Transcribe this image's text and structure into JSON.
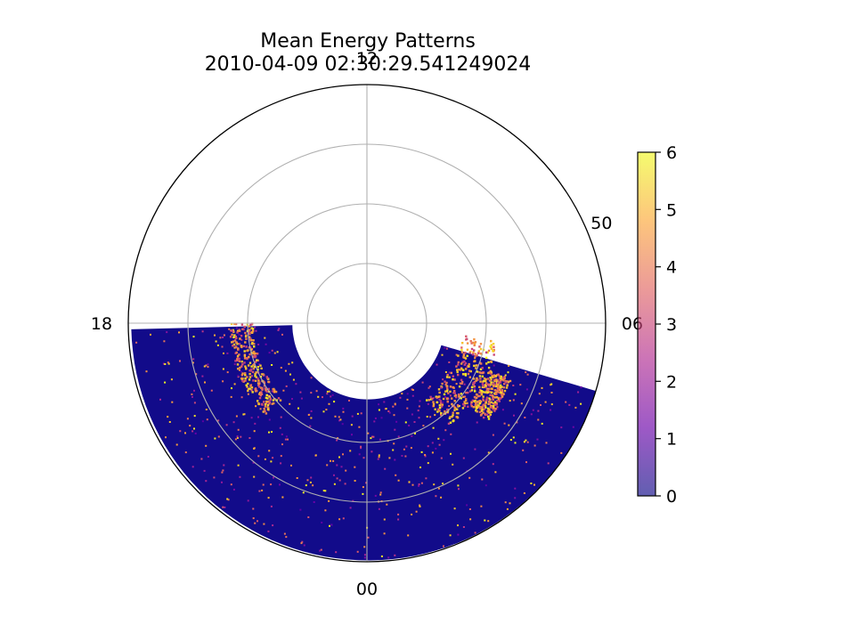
{
  "chart_data": {
    "type": "heatmap",
    "projection": "polar",
    "title": "Mean Energy Patterns",
    "subtitle": "2010-04-09 02:30:29.541249024",
    "angular_tick_labels": [
      {
        "label": "12",
        "mlt_hours": 12
      },
      {
        "label": "06",
        "mlt_hours": 6
      },
      {
        "label": "00",
        "mlt_hours": 0
      },
      {
        "label": "18",
        "mlt_hours": 18
      }
    ],
    "radial_tick_label": {
      "label": "50",
      "latitude_deg": 50
    },
    "radial_grid_latitudes_deg": [
      80,
      70,
      60,
      50
    ],
    "latitude_range": [
      50,
      90
    ],
    "colorbar": {
      "min": 0,
      "max": 6,
      "ticks": [
        "0",
        "1",
        "2",
        "3",
        "4",
        "5",
        "6"
      ],
      "colormap": "plasma",
      "colors": [
        "#0d0887",
        "#6a00a8",
        "#b12a90",
        "#e16462",
        "#fca636",
        "#f0f921"
      ]
    },
    "background_value": 0,
    "background_color": "#120b8a",
    "grid": true,
    "swath": {
      "description": "satellite data band",
      "mlt_start_hours": 18.1,
      "mlt_end_hours": 4.9,
      "top_edge_latitude_start": 50.5,
      "bottom_edge_latitude_start": 77.5,
      "top_edge_latitude_end": 50.0,
      "bottom_edge_latitude_end": 77.0
    },
    "auroral_features": [
      {
        "name": "dusk-side arc",
        "mlt_range": [
          18.0,
          20.8
        ],
        "latitude_range": [
          67,
          71
        ],
        "peak_value": 6
      },
      {
        "name": "dawn-side arc",
        "mlt_range": [
          2.5,
          5.5
        ],
        "latitude_range": [
          68,
          74
        ],
        "peak_value": 6
      },
      {
        "name": "post-midnight bright spot",
        "mlt_range": [
          3.4,
          4.6
        ],
        "latitude_range": [
          64,
          68
        ],
        "peak_value": 6
      }
    ]
  }
}
